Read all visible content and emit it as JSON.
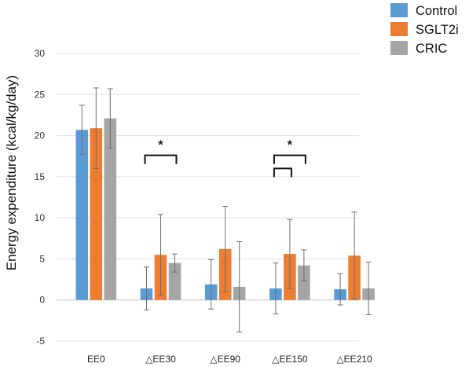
{
  "chart_data": {
    "type": "bar",
    "title": "",
    "xlabel": "",
    "ylabel": "Energy expenditure (kcal/kg/day)",
    "ylim": [
      -5,
      30
    ],
    "yticks": [
      -5,
      0,
      5,
      10,
      15,
      20,
      25,
      30
    ],
    "grid": true,
    "legend_position": "top-right",
    "categories": [
      "EE0",
      "△EE30",
      "△EE90",
      "△EE150",
      "△EE210"
    ],
    "series": [
      {
        "name": "Control",
        "color": "#5B9BD5",
        "values": [
          20.7,
          1.4,
          1.9,
          1.4,
          1.3
        ],
        "errors": [
          3.0,
          2.6,
          3.0,
          3.1,
          1.9
        ]
      },
      {
        "name": "SGLT2i",
        "color": "#ED7D31",
        "values": [
          20.9,
          5.5,
          6.2,
          5.6,
          5.4
        ],
        "errors": [
          4.9,
          4.9,
          5.2,
          4.2,
          5.3
        ]
      },
      {
        "name": "CRIC",
        "color": "#A5A5A5",
        "values": [
          22.1,
          4.5,
          1.6,
          4.2,
          1.4
        ],
        "errors": [
          3.6,
          1.1,
          5.5,
          1.9,
          3.2
        ]
      }
    ],
    "annotations": [
      {
        "category": 1,
        "from_series": 0,
        "to_series": 2,
        "level": 17.6,
        "label": "*"
      },
      {
        "category": 3,
        "from_series": 0,
        "to_series": 2,
        "level": 17.6,
        "label": "*"
      },
      {
        "category": 3,
        "from_series": 0,
        "to_series": 1,
        "level": 16.0,
        "label": ""
      }
    ]
  }
}
